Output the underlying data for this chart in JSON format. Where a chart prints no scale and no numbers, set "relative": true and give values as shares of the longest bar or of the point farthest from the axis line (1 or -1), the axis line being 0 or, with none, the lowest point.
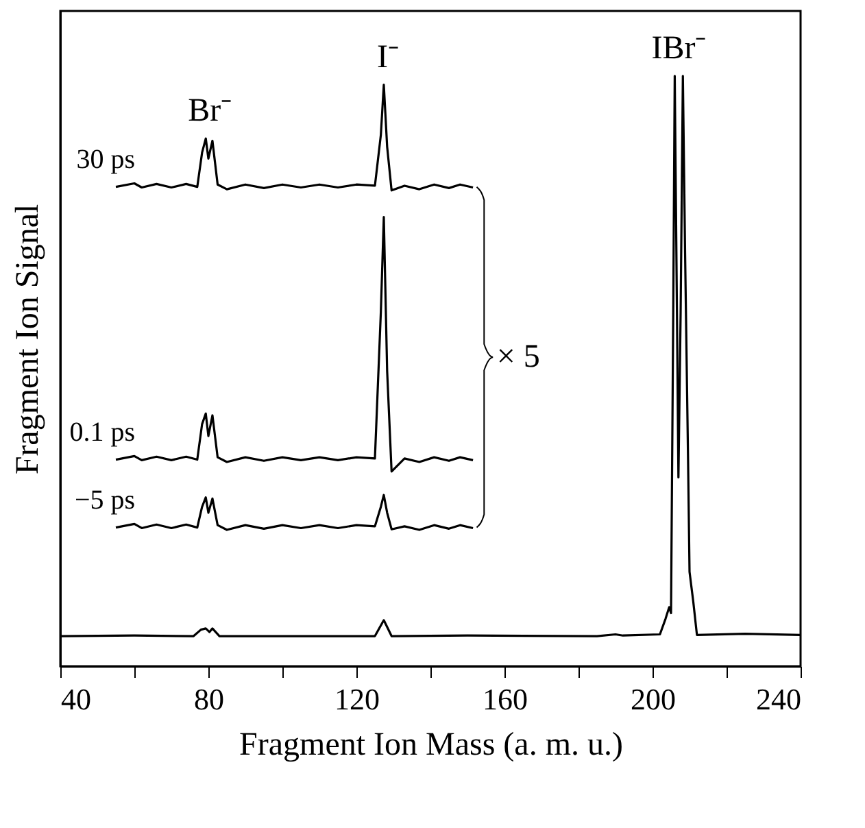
{
  "chart_data": {
    "type": "line",
    "relative": true,
    "xlabel": "Fragment Ion Mass (a. m. u.)",
    "ylabel": "Fragment Ion Signal",
    "xlim": [
      40,
      240
    ],
    "xticks": [
      40,
      {
        "value": 60,
        "label": null
      },
      80,
      {
        "value": 100,
        "label": null
      },
      120,
      {
        "value": 140,
        "label": null
      },
      160,
      {
        "value": 180,
        "label": null
      },
      200,
      {
        "value": 220,
        "label": null
      },
      240
    ],
    "tick_labels": "x",
    "grid": false,
    "marker": "none",
    "line_style": "solid",
    "annotations": [
      {
        "text": "Br⁻",
        "x": 79.3,
        "y": 0.894
      },
      {
        "text": "I⁻",
        "x": 127.4,
        "y": 0.985
      },
      {
        "text": "IBr⁻",
        "x": 206,
        "y": 1.0
      },
      "× 5"
    ],
    "series": [
      {
        "color": "#000000",
        "x": [
          40,
          60,
          76,
          78,
          79.3,
          80.3,
          81.1,
          83,
          100,
          125,
          127.4,
          129.5,
          150,
          185,
          190,
          192,
          202,
          203.5,
          204.5,
          205,
          205.6,
          206,
          206.6,
          207,
          207.6,
          208.2,
          208.8,
          209.6,
          210,
          211,
          212,
          225,
          240
        ],
        "values": [
          0.051,
          0.052,
          0.051,
          0.062,
          0.064,
          0.058,
          0.064,
          0.051,
          0.051,
          0.051,
          0.078,
          0.051,
          0.052,
          0.051,
          0.054,
          0.052,
          0.054,
          0.08,
          0.1,
          0.09,
          0.6,
          1.0,
          0.6,
          0.32,
          0.6,
          1.0,
          0.7,
          0.35,
          0.16,
          0.11,
          0.053,
          0.055,
          0.053
        ]
      },
      {
        "name": "30 ps",
        "color": "#000000",
        "x": [
          55,
          60,
          62,
          66,
          70,
          74,
          77,
          78.3,
          79.3,
          80,
          81.1,
          82.5,
          85,
          90,
          95,
          100,
          105,
          110,
          115,
          120,
          125,
          126.6,
          127.4,
          128.3,
          129.5,
          133,
          137,
          141,
          145,
          148,
          151.5
        ],
        "values": [
          0.812,
          0.818,
          0.811,
          0.817,
          0.811,
          0.817,
          0.812,
          0.87,
          0.894,
          0.86,
          0.89,
          0.816,
          0.808,
          0.816,
          0.81,
          0.816,
          0.811,
          0.816,
          0.811,
          0.816,
          0.814,
          0.9,
          0.985,
          0.88,
          0.806,
          0.814,
          0.808,
          0.816,
          0.81,
          0.816,
          0.811
        ]
      },
      {
        "name": "0.1 ps",
        "color": "#000000",
        "x": [
          55,
          60,
          62,
          66,
          70,
          74,
          77,
          78.3,
          79.3,
          80,
          81.1,
          82.5,
          85,
          90,
          95,
          100,
          105,
          110,
          115,
          120,
          125,
          126.6,
          127.4,
          128.3,
          129.5,
          133,
          137,
          141,
          145,
          148,
          151.5
        ],
        "values": [
          0.35,
          0.356,
          0.349,
          0.355,
          0.349,
          0.355,
          0.35,
          0.41,
          0.428,
          0.39,
          0.425,
          0.354,
          0.346,
          0.354,
          0.348,
          0.354,
          0.349,
          0.354,
          0.349,
          0.354,
          0.352,
          0.6,
          0.761,
          0.5,
          0.33,
          0.352,
          0.346,
          0.354,
          0.348,
          0.354,
          0.349
        ]
      },
      {
        "name": "−5 ps",
        "color": "#000000",
        "x": [
          55,
          60,
          62,
          66,
          70,
          74,
          77,
          78.3,
          79.3,
          80,
          81.1,
          82.5,
          85,
          90,
          95,
          100,
          105,
          110,
          115,
          120,
          125,
          126.6,
          127.4,
          128.3,
          129.5,
          133,
          137,
          141,
          145,
          148,
          151.5
        ],
        "values": [
          0.235,
          0.241,
          0.234,
          0.24,
          0.234,
          0.24,
          0.235,
          0.27,
          0.286,
          0.26,
          0.284,
          0.239,
          0.231,
          0.239,
          0.233,
          0.239,
          0.234,
          0.239,
          0.234,
          0.239,
          0.237,
          0.27,
          0.29,
          0.26,
          0.232,
          0.237,
          0.231,
          0.239,
          0.233,
          0.239,
          0.234
        ]
      }
    ]
  }
}
